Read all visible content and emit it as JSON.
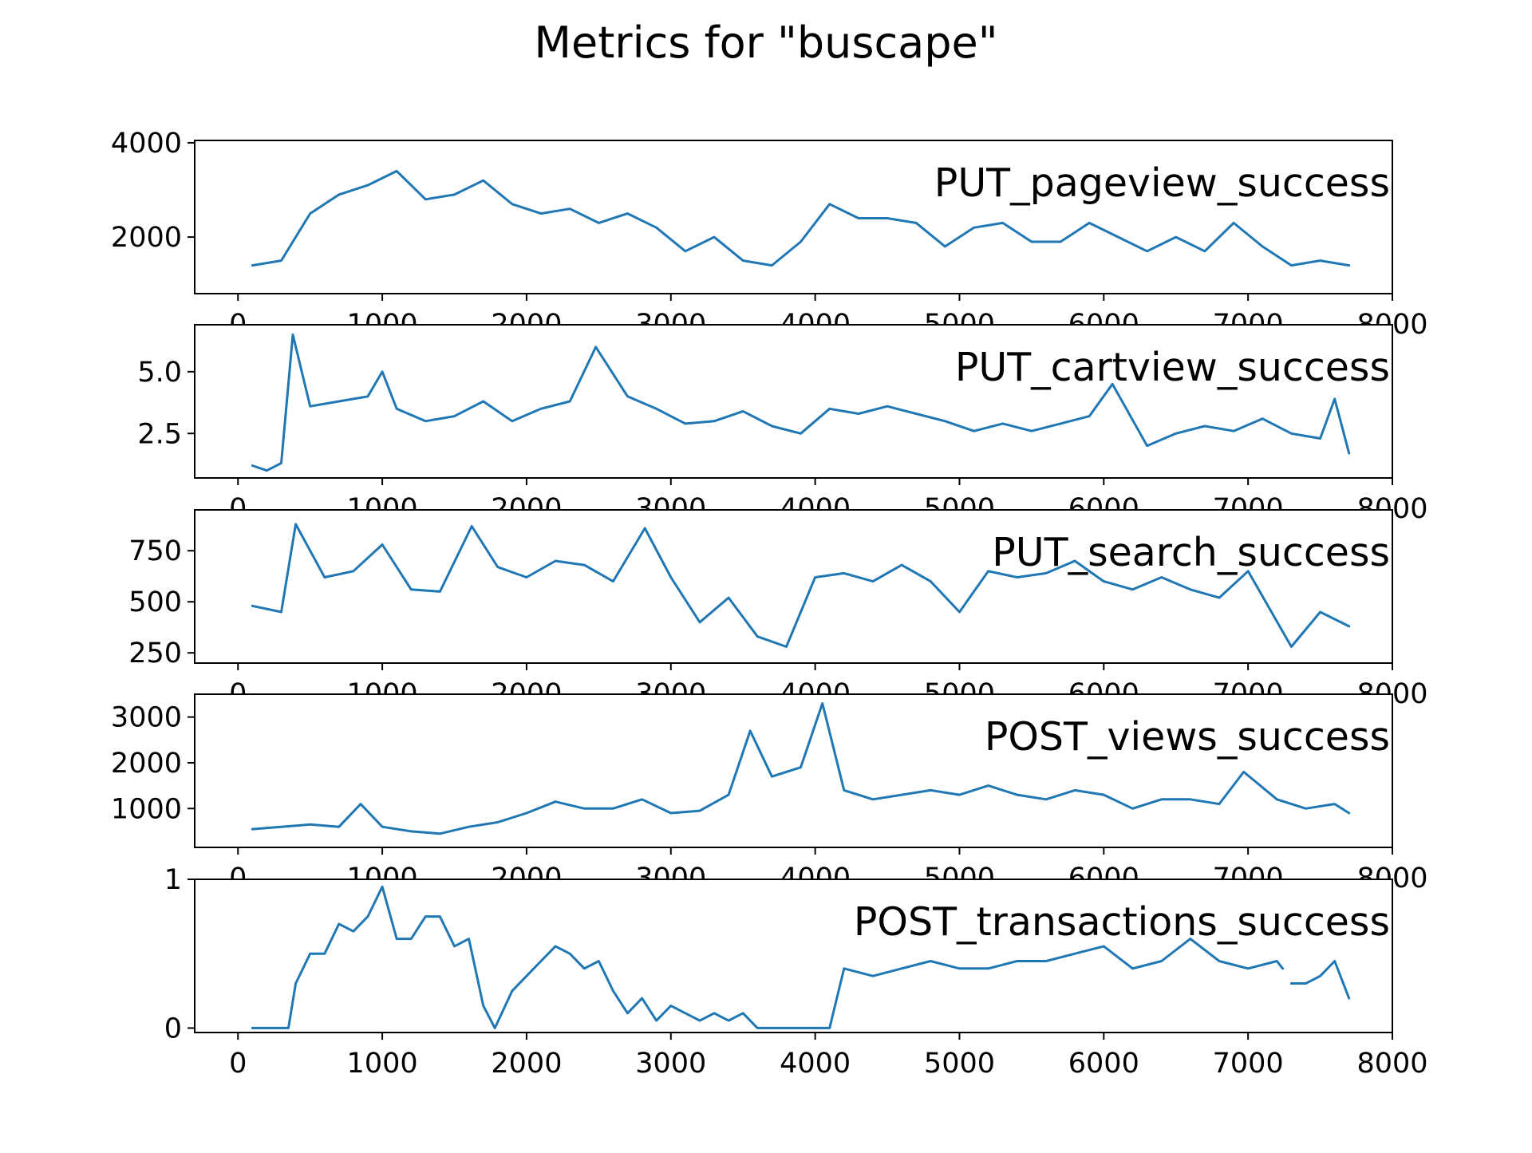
{
  "figure_title": "Metrics for \"buscape\"",
  "colors": {
    "series": "#1f77b4",
    "axes": "#000000",
    "background": "#ffffff"
  },
  "chart_data": [
    {
      "type": "line",
      "series_label": "PUT_pageview_success",
      "xlim": [
        -300,
        8000
      ],
      "ylim": [
        800,
        4050
      ],
      "x_ticks": [
        0,
        1000,
        2000,
        3000,
        4000,
        5000,
        6000,
        7000,
        8000
      ],
      "x_tick_labels": [
        "0",
        "1000",
        "2000",
        "3000",
        "4000",
        "5000",
        "6000",
        "7000",
        "8000"
      ],
      "y_ticks": [
        2000,
        4000
      ],
      "y_tick_labels": [
        "2000",
        "4000"
      ],
      "grid": false,
      "legend": "none",
      "x": [
        100,
        300,
        500,
        700,
        900,
        1100,
        1300,
        1500,
        1700,
        1900,
        2100,
        2300,
        2500,
        2700,
        2900,
        3100,
        3300,
        3500,
        3700,
        3900,
        4100,
        4300,
        4500,
        4700,
        4900,
        5100,
        5300,
        5500,
        5700,
        5900,
        6100,
        6300,
        6500,
        6700,
        6900,
        7100,
        7300,
        7500,
        7700
      ],
      "y": [
        1400,
        1500,
        2500,
        2900,
        3100,
        3400,
        2800,
        2900,
        3200,
        2700,
        2500,
        2600,
        2300,
        2500,
        2200,
        1700,
        2000,
        1500,
        1400,
        1900,
        2700,
        2400,
        2400,
        2300,
        1800,
        2200,
        2300,
        1900,
        1900,
        2300,
        2000,
        1700,
        2000,
        1700,
        2300,
        1800,
        1400,
        1500,
        1400
      ]
    },
    {
      "type": "line",
      "series_label": "PUT_cartview_success",
      "xlim": [
        -300,
        8000
      ],
      "ylim": [
        0.7,
        6.9
      ],
      "x_ticks": [
        0,
        1000,
        2000,
        3000,
        4000,
        5000,
        6000,
        7000,
        8000
      ],
      "x_tick_labels": [
        "0",
        "1000",
        "2000",
        "3000",
        "4000",
        "5000",
        "6000",
        "7000",
        "8000"
      ],
      "y_ticks": [
        2.5,
        5.0
      ],
      "y_tick_labels": [
        "2.5",
        "5.0"
      ],
      "grid": false,
      "legend": "none",
      "x": [
        100,
        200,
        300,
        380,
        500,
        700,
        900,
        1000,
        1100,
        1300,
        1500,
        1700,
        1900,
        2100,
        2300,
        2480,
        2700,
        2900,
        3100,
        3300,
        3500,
        3700,
        3900,
        4100,
        4300,
        4500,
        4700,
        4900,
        5100,
        5300,
        5500,
        5700,
        5900,
        6060,
        6300,
        6500,
        6700,
        6900,
        7100,
        7300,
        7500,
        7600,
        7700
      ],
      "y": [
        1.2,
        1.0,
        1.3,
        6.5,
        3.6,
        3.8,
        4.0,
        5.0,
        3.5,
        3.0,
        3.2,
        3.8,
        3.0,
        3.5,
        3.8,
        6.0,
        4.0,
        3.5,
        2.9,
        3.0,
        3.4,
        2.8,
        2.5,
        3.5,
        3.3,
        3.6,
        3.3,
        3.0,
        2.6,
        2.9,
        2.6,
        2.9,
        3.2,
        4.5,
        2.0,
        2.5,
        2.8,
        2.6,
        3.1,
        2.5,
        2.3,
        3.9,
        1.7
      ]
    },
    {
      "type": "line",
      "series_label": "PUT_search_success",
      "xlim": [
        -300,
        8000
      ],
      "ylim": [
        200,
        950
      ],
      "x_ticks": [
        0,
        1000,
        2000,
        3000,
        4000,
        5000,
        6000,
        7000,
        8000
      ],
      "x_tick_labels": [
        "0",
        "1000",
        "2000",
        "3000",
        "4000",
        "5000",
        "6000",
        "7000",
        "8000"
      ],
      "y_ticks": [
        250,
        500,
        750
      ],
      "y_tick_labels": [
        "250",
        "500",
        "750"
      ],
      "grid": false,
      "legend": "none",
      "x": [
        100,
        300,
        400,
        600,
        800,
        1000,
        1200,
        1400,
        1620,
        1800,
        2000,
        2200,
        2400,
        2600,
        2820,
        3000,
        3200,
        3400,
        3600,
        3800,
        4000,
        4200,
        4400,
        4600,
        4800,
        5000,
        5200,
        5400,
        5600,
        5800,
        6000,
        6200,
        6400,
        6600,
        6800,
        7000,
        7300,
        7500,
        7700
      ],
      "y": [
        480,
        450,
        880,
        620,
        650,
        780,
        560,
        550,
        870,
        670,
        620,
        700,
        680,
        600,
        860,
        620,
        400,
        520,
        330,
        280,
        620,
        640,
        600,
        680,
        600,
        450,
        650,
        620,
        640,
        700,
        600,
        560,
        620,
        560,
        520,
        650,
        280,
        450,
        380
      ]
    },
    {
      "type": "line",
      "series_label": "POST_views_success",
      "xlim": [
        -300,
        8000
      ],
      "ylim": [
        150,
        3500
      ],
      "x_ticks": [
        0,
        1000,
        2000,
        3000,
        4000,
        5000,
        6000,
        7000,
        8000
      ],
      "x_tick_labels": [
        "0",
        "1000",
        "2000",
        "3000",
        "4000",
        "5000",
        "6000",
        "7000",
        "8000"
      ],
      "y_ticks": [
        1000,
        2000,
        3000
      ],
      "y_tick_labels": [
        "1000",
        "2000",
        "3000"
      ],
      "grid": false,
      "legend": "none",
      "x": [
        100,
        300,
        500,
        700,
        850,
        1000,
        1200,
        1400,
        1600,
        1800,
        2000,
        2200,
        2400,
        2600,
        2800,
        3000,
        3200,
        3400,
        3550,
        3700,
        3900,
        4050,
        4200,
        4400,
        4600,
        4800,
        5000,
        5200,
        5400,
        5600,
        5800,
        6000,
        6200,
        6400,
        6600,
        6800,
        6970,
        7200,
        7400,
        7600,
        7700
      ],
      "y": [
        550,
        600,
        650,
        600,
        1100,
        600,
        500,
        450,
        600,
        700,
        900,
        1150,
        1000,
        1000,
        1200,
        900,
        950,
        1300,
        2700,
        1700,
        1900,
        3300,
        1400,
        1200,
        1300,
        1400,
        1300,
        1500,
        1300,
        1200,
        1400,
        1300,
        1000,
        1200,
        1200,
        1100,
        1800,
        1200,
        1000,
        1100,
        900
      ]
    },
    {
      "type": "line",
      "series_label": "POST_transactions_success",
      "xlim": [
        -300,
        8000
      ],
      "ylim": [
        -0.03,
        1.0
      ],
      "x_ticks": [
        0,
        1000,
        2000,
        3000,
        4000,
        5000,
        6000,
        7000,
        8000
      ],
      "x_tick_labels": [
        "0",
        "1000",
        "2000",
        "3000",
        "4000",
        "5000",
        "6000",
        "7000",
        "8000"
      ],
      "y_ticks": [
        0,
        1
      ],
      "y_tick_labels": [
        "0",
        "1"
      ],
      "grid": false,
      "legend": "none",
      "x": [
        100,
        350,
        400,
        500,
        600,
        700,
        800,
        900,
        1000,
        1100,
        1200,
        1300,
        1400,
        1500,
        1600,
        1700,
        1780,
        1900,
        2000,
        2100,
        2200,
        2300,
        2400,
        2500,
        2600,
        2700,
        2800,
        2900,
        3000,
        3100,
        3200,
        3300,
        3400,
        3500,
        3600,
        3700,
        3800,
        4000,
        4100,
        4200,
        4400,
        4600,
        4800,
        5000,
        5200,
        5400,
        5600,
        5800,
        6000,
        6200,
        6400,
        6600,
        6800,
        7000,
        7200,
        7240,
        null,
        7300,
        7400,
        7500,
        7600,
        7700
      ],
      "y": [
        0.0,
        0.0,
        0.3,
        0.5,
        0.5,
        0.7,
        0.65,
        0.75,
        0.95,
        0.6,
        0.6,
        0.75,
        0.75,
        0.55,
        0.6,
        0.15,
        0.0,
        0.25,
        0.35,
        0.45,
        0.55,
        0.5,
        0.4,
        0.45,
        0.25,
        0.1,
        0.2,
        0.05,
        0.15,
        0.1,
        0.05,
        0.1,
        0.05,
        0.1,
        0.0,
        0.0,
        0.0,
        0.0,
        0.0,
        0.4,
        0.35,
        0.4,
        0.45,
        0.4,
        0.4,
        0.45,
        0.45,
        0.5,
        0.55,
        0.4,
        0.45,
        0.6,
        0.45,
        0.4,
        0.45,
        0.4,
        null,
        0.3,
        0.3,
        0.35,
        0.45,
        0.2
      ]
    }
  ]
}
